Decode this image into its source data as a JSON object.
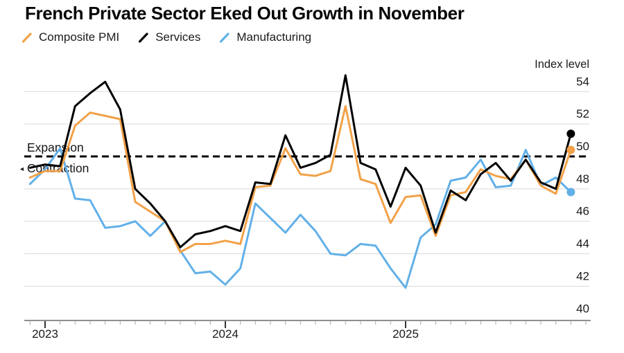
{
  "title": "French Private Sector Eked Out Growth in November",
  "axis_note": "Index level",
  "threshold_labels": {
    "above": "Expansion",
    "below": "Contraction",
    "marker": "◄"
  },
  "colors": {
    "composite": "#F2A148",
    "services": "#000000",
    "manufacturing": "#62B0E8",
    "gridline": "#d9d9d9",
    "axis_line": "#8f8f8f",
    "text": "#1a1a1a",
    "threshold_line": "#000000"
  },
  "chart_data": {
    "type": "line",
    "title": "French Private Sector Eked Out Growth in November",
    "ylabel": "Index level",
    "xlabel": "",
    "grid": "horizontal",
    "legend_position": "top",
    "threshold": 50,
    "ylim": [
      39.5,
      55.5
    ],
    "y_ticks": [
      54,
      52,
      50,
      48,
      46,
      44,
      42,
      40
    ],
    "x_tick_labels": [
      "2023",
      "2024",
      "2025"
    ],
    "x_tick_month_indices": [
      1,
      13,
      25
    ],
    "x": [
      "Nov 2022",
      "Dec 2022",
      "Jan 2023",
      "Feb 2023",
      "Mar 2023",
      "Apr 2023",
      "May 2023",
      "Jun 2023",
      "Jul 2023",
      "Aug 2023",
      "Sep 2023",
      "Oct 2023",
      "Nov 2023",
      "Dec 2023",
      "Jan 2024",
      "Feb 2024",
      "Mar 2024",
      "Apr 2024",
      "May 2024",
      "Jun 2024",
      "Jul 2024",
      "Aug 2024",
      "Sep 2024",
      "Oct 2024",
      "Nov 2024",
      "Dec 2024",
      "Jan 2025",
      "Feb 2025",
      "Mar 2025",
      "Apr 2025",
      "May 2025",
      "Jun 2025",
      "Jul 2025",
      "Aug 2025",
      "Sep 2025",
      "Oct 2025",
      "Nov 2025"
    ],
    "series": [
      {
        "name": "Composite PMI",
        "color": "#F2A148",
        "values": [
          48.7,
          49.1,
          49.1,
          51.9,
          52.7,
          52.5,
          52.3,
          47.2,
          46.6,
          46.0,
          44.1,
          44.6,
          44.6,
          44.8,
          44.6,
          48.1,
          48.2,
          50.5,
          48.9,
          48.8,
          49.1,
          53.1,
          48.6,
          48.3,
          45.9,
          47.5,
          47.6,
          45.1,
          47.6,
          47.8,
          49.2,
          48.8,
          48.6,
          49.8,
          48.2,
          47.7,
          50.4
        ]
      },
      {
        "name": "Services",
        "color": "#000000",
        "values": [
          49.3,
          49.5,
          49.4,
          53.1,
          53.9,
          54.6,
          52.9,
          48.0,
          47.1,
          46.0,
          44.4,
          45.2,
          45.4,
          45.7,
          45.4,
          48.4,
          48.3,
          51.3,
          49.3,
          49.6,
          50.1,
          55.0,
          49.6,
          49.2,
          46.9,
          49.3,
          48.2,
          45.3,
          47.9,
          47.3,
          48.9,
          49.6,
          48.5,
          49.8,
          48.4,
          48.0,
          51.4
        ]
      },
      {
        "name": "Manufacturing",
        "color": "#62B0E8",
        "values": [
          48.3,
          49.2,
          50.5,
          47.4,
          47.3,
          45.6,
          45.7,
          46.0,
          45.1,
          46.0,
          44.2,
          42.8,
          42.9,
          42.1,
          43.1,
          47.1,
          46.2,
          45.3,
          46.4,
          45.4,
          44.0,
          43.9,
          44.6,
          44.5,
          43.1,
          41.9,
          45.0,
          45.8,
          48.5,
          48.7,
          49.8,
          48.1,
          48.2,
          50.4,
          48.2,
          48.7,
          47.8
        ]
      }
    ]
  }
}
